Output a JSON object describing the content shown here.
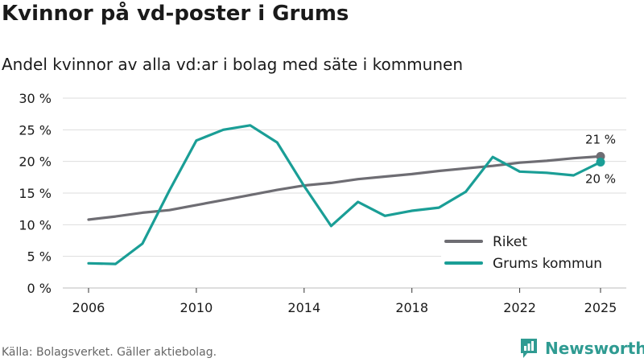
{
  "header": {
    "title": "Kvinnor på vd-poster i Grums",
    "subtitle": "Andel kvinnor av alla vd:ar i bolag med säte i kommunen"
  },
  "footer": {
    "source": "Källa: Bolagsverket. Gäller aktiebolag.",
    "brand": "Newsworthy",
    "brand_icon": "newsworthy-logo-icon"
  },
  "colors": {
    "riket": "#6e6d73",
    "grums": "#1a9e96",
    "grid": "#dddddd",
    "brand": "#2f9b92"
  },
  "chart_data": {
    "type": "line",
    "title": "Kvinnor på vd-poster i Grums",
    "subtitle": "Andel kvinnor av alla vd:ar i bolag med säte i kommunen",
    "xlabel": "",
    "ylabel": "",
    "ylim": [
      0,
      30
    ],
    "yticks": [
      0,
      5,
      10,
      15,
      20,
      25,
      30
    ],
    "ytick_labels": [
      "0 %",
      "5 %",
      "10 %",
      "15 %",
      "20 %",
      "25 %",
      "30 %"
    ],
    "xlim": [
      2006,
      2025
    ],
    "xticks": [
      2006,
      2010,
      2014,
      2018,
      2022,
      2025
    ],
    "xtick_labels": [
      "2006",
      "2010",
      "2014",
      "2018",
      "2022",
      "2025"
    ],
    "grid": true,
    "legend_position": "bottom-right",
    "x": [
      2006,
      2007,
      2008,
      2009,
      2010,
      2011,
      2012,
      2013,
      2014,
      2015,
      2016,
      2017,
      2018,
      2019,
      2020,
      2021,
      2022,
      2023,
      2024,
      2025
    ],
    "series": [
      {
        "name": "Riket",
        "values": [
          10.8,
          11.3,
          11.9,
          12.3,
          13.1,
          13.9,
          14.7,
          15.5,
          16.2,
          16.6,
          17.2,
          17.6,
          18.0,
          18.5,
          18.9,
          19.3,
          19.8,
          20.1,
          20.5,
          20.8
        ],
        "end_label": "21 %"
      },
      {
        "name": "Grums kommun",
        "values": [
          3.9,
          3.8,
          7.0,
          15.4,
          23.3,
          25.0,
          25.7,
          23.0,
          16.1,
          9.8,
          13.6,
          11.4,
          12.2,
          12.7,
          15.2,
          20.7,
          18.4,
          18.2,
          17.8,
          19.9
        ],
        "end_label": "20 %"
      }
    ]
  }
}
